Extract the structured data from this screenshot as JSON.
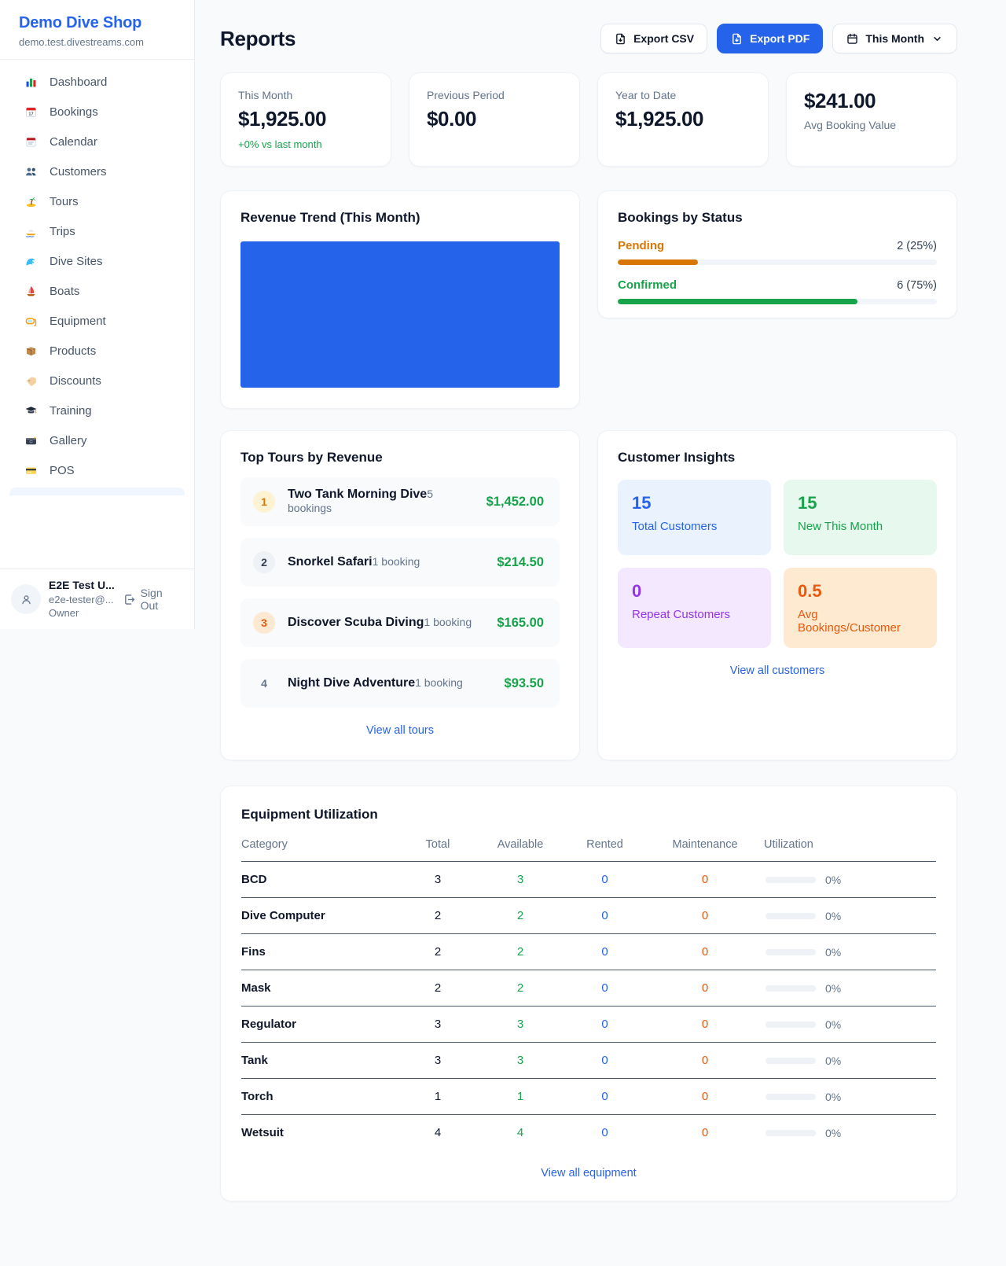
{
  "sidebar": {
    "title": "Demo Dive Shop",
    "subtitle": "demo.test.divestreams.com",
    "items": [
      {
        "label": "Dashboard",
        "icon": "chart-bar"
      },
      {
        "label": "Bookings",
        "icon": "calendar-date"
      },
      {
        "label": "Calendar",
        "icon": "calendar-pad"
      },
      {
        "label": "Customers",
        "icon": "users"
      },
      {
        "label": "Tours",
        "icon": "island"
      },
      {
        "label": "Trips",
        "icon": "speedboat"
      },
      {
        "label": "Dive Sites",
        "icon": "wave"
      },
      {
        "label": "Boats",
        "icon": "sailboat"
      },
      {
        "label": "Equipment",
        "icon": "dive-mask"
      },
      {
        "label": "Products",
        "icon": "box"
      },
      {
        "label": "Discounts",
        "icon": "tag"
      },
      {
        "label": "Training",
        "icon": "grad-cap"
      },
      {
        "label": "Gallery",
        "icon": "camera"
      },
      {
        "label": "POS",
        "icon": "credit-card"
      }
    ],
    "user": {
      "name": "E2E Test U...",
      "email": "e2e-tester@...",
      "role": "Owner",
      "sign_out_label": "Sign Out"
    }
  },
  "header": {
    "title": "Reports",
    "export_csv_label": "Export CSV",
    "export_pdf_label": "Export PDF",
    "period_label": "This Month",
    "accent_color": "#2563eb"
  },
  "stats": [
    {
      "label": "This Month",
      "value": "$1,925.00",
      "delta": "+0% vs last month"
    },
    {
      "label": "Previous Period",
      "value": "$0.00"
    },
    {
      "label": "Year to Date",
      "value": "$1,925.00"
    },
    {
      "label": "Avg Booking Value",
      "value": "$241.00"
    }
  ],
  "revenue_trend": {
    "title": "Revenue Trend (This Month)",
    "chart_data": {
      "type": "area",
      "note": "solid filled block, no visible axes or points",
      "fill_color": "#2563eb"
    }
  },
  "bookings_by_status": {
    "title": "Bookings by Status",
    "rows": [
      {
        "label": "Pending",
        "value": "2 (25%)",
        "percent": 25,
        "color": "#d97706"
      },
      {
        "label": "Confirmed",
        "value": "6 (75%)",
        "percent": 75,
        "color": "#16a34a"
      }
    ]
  },
  "top_tours": {
    "title": "Top Tours by Revenue",
    "rows": [
      {
        "rank": "1",
        "name": "Two Tank Morning Dive",
        "bookings": "5 bookings",
        "revenue": "$1,452.00"
      },
      {
        "rank": "2",
        "name": "Snorkel Safari",
        "bookings": "1 booking",
        "revenue": "$214.50"
      },
      {
        "rank": "3",
        "name": "Discover Scuba Diving",
        "bookings": "1 booking",
        "revenue": "$165.00"
      },
      {
        "rank": "4",
        "name": "Night Dive Adventure",
        "bookings": "1 booking",
        "revenue": "$93.50"
      }
    ],
    "link": "View all tours"
  },
  "customer_insights": {
    "title": "Customer Insights",
    "tiles": [
      {
        "value": "15",
        "label": "Total Customers",
        "color": "#2563eb",
        "bg": "#eaf2fe"
      },
      {
        "value": "15",
        "label": "New This Month",
        "color": "#16a34a",
        "bg": "#e7f8ef"
      },
      {
        "value": "0",
        "label": "Repeat Customers",
        "color": "#9333ea",
        "bg": "#f3e8ff"
      },
      {
        "value": "0.5",
        "label": "Avg Bookings/Customer",
        "color": "#ea580c",
        "bg": "#fdead1"
      }
    ],
    "link": "View all customers"
  },
  "equipment": {
    "title": "Equipment Utilization",
    "columns": [
      "Category",
      "Total",
      "Available",
      "Rented",
      "Maintenance",
      "Utilization"
    ],
    "rows": [
      {
        "category": "BCD",
        "total": "3",
        "available": "3",
        "rented": "0",
        "maintenance": "0",
        "utilization": "0%"
      },
      {
        "category": "Dive Computer",
        "total": "2",
        "available": "2",
        "rented": "0",
        "maintenance": "0",
        "utilization": "0%"
      },
      {
        "category": "Fins",
        "total": "2",
        "available": "2",
        "rented": "0",
        "maintenance": "0",
        "utilization": "0%"
      },
      {
        "category": "Mask",
        "total": "2",
        "available": "2",
        "rented": "0",
        "maintenance": "0",
        "utilization": "0%"
      },
      {
        "category": "Regulator",
        "total": "3",
        "available": "3",
        "rented": "0",
        "maintenance": "0",
        "utilization": "0%"
      },
      {
        "category": "Tank",
        "total": "3",
        "available": "3",
        "rented": "0",
        "maintenance": "0",
        "utilization": "0%"
      },
      {
        "category": "Torch",
        "total": "1",
        "available": "1",
        "rented": "0",
        "maintenance": "0",
        "utilization": "0%"
      },
      {
        "category": "Wetsuit",
        "total": "4",
        "available": "4",
        "rented": "0",
        "maintenance": "0",
        "utilization": "0%"
      }
    ],
    "link": "View all equipment"
  }
}
